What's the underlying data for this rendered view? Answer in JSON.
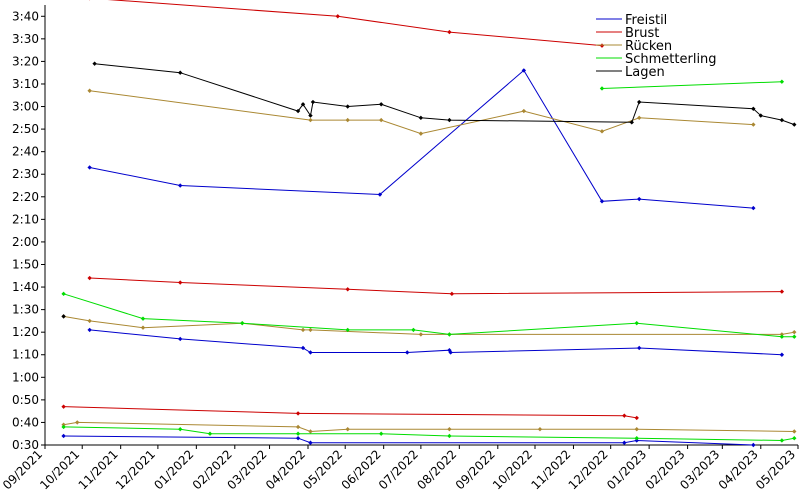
{
  "chart_data": {
    "type": "line",
    "title": "",
    "xlabel": "",
    "ylabel": "",
    "x_tick_labels": [
      "09/2021",
      "10/2021",
      "11/2021",
      "12/2021",
      "01/2022",
      "02/2022",
      "03/2022",
      "04/2022",
      "05/2022",
      "06/2022",
      "07/2022",
      "08/2022",
      "09/2022",
      "10/2022",
      "11/2022",
      "12/2022",
      "01/2023",
      "02/2023",
      "03/2023",
      "04/2023",
      "05/2023"
    ],
    "y_tick_labels": [
      "0:30",
      "0:40",
      "0:50",
      "1:00",
      "1:10",
      "1:20",
      "1:30",
      "1:40",
      "1:50",
      "2:00",
      "2:10",
      "2:20",
      "2:30",
      "2:40",
      "2:50",
      "3:00",
      "3:10",
      "3:20",
      "3:30",
      "3:40"
    ],
    "x_range": [
      "2021-09-01",
      "2023-05-01"
    ],
    "y_range_seconds": [
      30,
      225
    ],
    "grid": false,
    "legend_position": "top-right",
    "series": [
      {
        "name": "Freistil",
        "color": "#0000cc",
        "points": [
          [
            "2021-10-07",
            153
          ],
          [
            "2021-12-19",
            145
          ],
          [
            "2022-05-29",
            141
          ],
          [
            "2022-09-22",
            196
          ],
          [
            "2022-11-24",
            138
          ],
          [
            "2022-12-24",
            139
          ],
          [
            "2023-03-26",
            135
          ]
        ]
      },
      {
        "name": "Freistil",
        "color": "#0000cc",
        "points": [
          [
            "2021-10-07",
            81
          ],
          [
            "2021-12-19",
            77
          ],
          [
            "2022-03-28",
            73
          ],
          [
            "2022-04-03",
            71
          ],
          [
            "2022-06-20",
            71
          ],
          [
            "2022-07-24",
            72
          ],
          [
            "2022-07-25",
            71
          ],
          [
            "2022-12-24",
            73
          ],
          [
            "2023-04-18",
            70
          ]
        ]
      },
      {
        "name": "Freistil",
        "color": "#0000cc",
        "points": [
          [
            "2021-09-16",
            34
          ],
          [
            "2022-03-24",
            33
          ],
          [
            "2022-04-03",
            31
          ],
          [
            "2022-12-12",
            31
          ],
          [
            "2022-12-22",
            32
          ],
          [
            "2023-03-26",
            30
          ]
        ]
      },
      {
        "name": "Brust",
        "color": "#cc0000",
        "points": [
          [
            "2021-10-07",
            228
          ],
          [
            "2022-04-25",
            220
          ],
          [
            "2022-07-24",
            213
          ],
          [
            "2022-11-24",
            207
          ]
        ]
      },
      {
        "name": "Brust",
        "color": "#cc0000",
        "points": [
          [
            "2021-10-07",
            104
          ],
          [
            "2021-12-19",
            102
          ],
          [
            "2022-05-03",
            99
          ],
          [
            "2022-07-26",
            97
          ],
          [
            "2023-04-18",
            98
          ]
        ]
      },
      {
        "name": "Brust",
        "color": "#cc0000",
        "points": [
          [
            "2021-09-16",
            47
          ],
          [
            "2022-03-24",
            44
          ],
          [
            "2022-12-12",
            43
          ],
          [
            "2022-12-22",
            42
          ]
        ]
      },
      {
        "name": "Rücken",
        "color": "#aa8833",
        "points": [
          [
            "2021-10-07",
            187
          ],
          [
            "2022-04-03",
            174
          ],
          [
            "2022-05-03",
            174
          ],
          [
            "2022-05-30",
            174
          ],
          [
            "2022-07-01",
            168
          ],
          [
            "2022-09-22",
            178
          ],
          [
            "2022-11-24",
            169
          ],
          [
            "2022-12-24",
            175
          ],
          [
            "2023-03-26",
            172
          ]
        ]
      },
      {
        "name": "Rücken",
        "color": "#aa8833",
        "points": [
          [
            "2021-09-16",
            87
          ],
          [
            "2021-10-07",
            85
          ],
          [
            "2021-11-19",
            82
          ],
          [
            "2022-02-07",
            84
          ],
          [
            "2022-03-28",
            81
          ],
          [
            "2022-04-03",
            81
          ],
          [
            "2022-07-01",
            79
          ],
          [
            "2022-07-24",
            79
          ],
          [
            "2023-04-18",
            79
          ],
          [
            "2023-04-28",
            80
          ]
        ]
      },
      {
        "name": "Rücken",
        "color": "#aa8833",
        "points": [
          [
            "2021-09-16",
            39
          ],
          [
            "2021-09-27",
            40
          ],
          [
            "2022-03-24",
            38
          ],
          [
            "2022-04-03",
            36
          ],
          [
            "2022-05-03",
            37
          ],
          [
            "2022-07-24",
            37
          ],
          [
            "2022-10-05",
            37
          ],
          [
            "2022-12-22",
            37
          ],
          [
            "2023-04-28",
            36
          ]
        ]
      },
      {
        "name": "Schmetterling",
        "color": "#00dd00",
        "points": [
          [
            "2022-11-24",
            188
          ],
          [
            "2023-04-18",
            191
          ]
        ]
      },
      {
        "name": "Schmetterling",
        "color": "#00dd00",
        "points": [
          [
            "2021-09-16",
            97
          ],
          [
            "2021-11-19",
            86
          ],
          [
            "2022-02-07",
            84
          ],
          [
            "2022-05-03",
            81
          ],
          [
            "2022-06-25",
            81
          ],
          [
            "2022-07-24",
            79
          ],
          [
            "2022-12-22",
            84
          ],
          [
            "2023-04-18",
            78
          ],
          [
            "2023-04-28",
            78
          ]
        ]
      },
      {
        "name": "Schmetterling",
        "color": "#00dd00",
        "points": [
          [
            "2021-09-16",
            38
          ],
          [
            "2021-12-19",
            37
          ],
          [
            "2022-01-12",
            35
          ],
          [
            "2022-03-24",
            35
          ],
          [
            "2022-05-30",
            35
          ],
          [
            "2022-07-24",
            34
          ],
          [
            "2022-12-22",
            33
          ],
          [
            "2023-04-18",
            32
          ],
          [
            "2023-04-28",
            33
          ]
        ]
      },
      {
        "name": "Lagen",
        "color": "#000000",
        "points": [
          [
            "2021-10-11",
            199
          ],
          [
            "2021-12-19",
            195
          ],
          [
            "2022-03-24",
            178
          ],
          [
            "2022-03-28",
            181
          ],
          [
            "2022-04-03",
            176
          ],
          [
            "2022-04-05",
            182
          ],
          [
            "2022-05-03",
            180
          ],
          [
            "2022-05-30",
            181
          ],
          [
            "2022-07-01",
            175
          ],
          [
            "2022-07-24",
            174
          ],
          [
            "2022-12-18",
            173
          ],
          [
            "2022-12-24",
            182
          ],
          [
            "2023-03-26",
            179
          ],
          [
            "2023-04-01",
            176
          ],
          [
            "2023-04-18",
            174
          ],
          [
            "2023-04-28",
            172
          ]
        ]
      },
      {
        "name": "Lagen",
        "color": "#000000",
        "points": [
          [
            "2021-09-16",
            87
          ]
        ]
      }
    ],
    "legend": [
      {
        "label": "Freistil",
        "color": "#0000cc"
      },
      {
        "label": "Brust",
        "color": "#cc0000"
      },
      {
        "label": "Rücken",
        "color": "#aa8833"
      },
      {
        "label": "Schmetterling",
        "color": "#00dd00"
      },
      {
        "label": "Lagen",
        "color": "#000000"
      }
    ]
  }
}
